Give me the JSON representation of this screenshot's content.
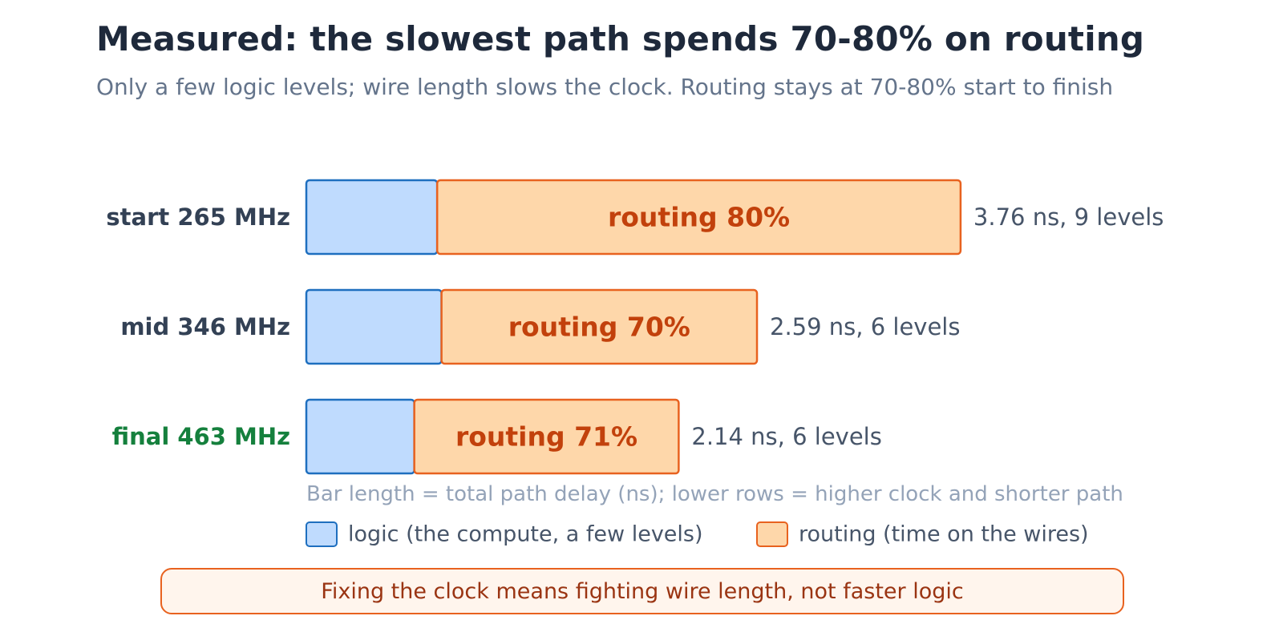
{
  "chart_data": {
    "type": "bar",
    "stacked": true,
    "orientation": "horizontal",
    "title": "Measured: the slowest path spends 70-80% on routing",
    "subtitle": "Only a few logic levels; wire length slows the clock. Routing stays at 70-80% start to finish",
    "categories": [
      "start 265 MHz",
      "mid 346 MHz",
      "final 463 MHz"
    ],
    "total_delay_ns": [
      3.76,
      2.59,
      2.14
    ],
    "routing_percent": [
      80,
      70,
      71
    ],
    "end_labels": [
      "3.76 ns, 9 levels",
      "2.59 ns, 6 levels",
      "2.14 ns, 6 levels"
    ],
    "segment_labels": [
      "routing 80%",
      "routing 70%",
      "routing 71%"
    ],
    "series": [
      {
        "name": "logic (the compute, a few levels)",
        "color": "#bfdbfe",
        "stroke": "#1e6fbf"
      },
      {
        "name": "routing (time on the wires)",
        "color": "#fed7aa",
        "stroke": "#e8621f"
      }
    ],
    "row_label_colors": [
      "#334155",
      "#334155",
      "#15803d"
    ],
    "note": "Bar length = total path delay (ns); lower rows = higher clock and shorter path",
    "legend_placement": "bottom",
    "grid": false
  },
  "callout": "Fixing the clock means fighting wire length, not faster logic"
}
